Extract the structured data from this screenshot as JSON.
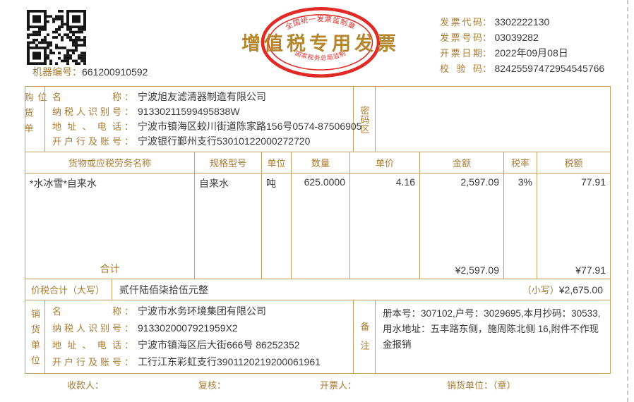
{
  "punct": {
    "colon": "："
  },
  "header": {
    "machine_label": "机器编号",
    "machine_value": "661200910592",
    "title": "增值税专用发票",
    "stamp": {
      "top": "全国统一发票监制章",
      "bottom": "国家税务总局监制"
    },
    "info": [
      {
        "label": "发票代码",
        "value": "3302222130"
      },
      {
        "label": "发票号码",
        "value": "03039282"
      },
      {
        "label": "开票日期",
        "value": "2022年09月08日"
      },
      {
        "label": "校验码",
        "value": "82425597472954545766"
      }
    ]
  },
  "buyer": {
    "side_label": "购货单位",
    "rows": [
      {
        "label": "名称",
        "value": "宁波旭友滤清器制造有限公司"
      },
      {
        "label": "纳税人识别号",
        "value": "91330211599495838W"
      },
      {
        "label": "地址、电话",
        "value": "宁波市镇海区蛟川街道陈家路156号0574-87506905"
      },
      {
        "label": "开户行及账号",
        "value": "宁波银行鄞州支行53010122000272720"
      }
    ],
    "password_area_label": "密码区"
  },
  "items_table": {
    "headers": [
      "货物或应税劳务名称",
      "规格型号",
      "单位",
      "数量",
      "单价",
      "金额",
      "税率",
      "税额"
    ],
    "rows": [
      {
        "name": "*水冰雪*自来水",
        "spec": "自来水",
        "unit": "吨",
        "qty": "625.0000",
        "price": "4.16",
        "amount": "2,597.09",
        "tax_rate": "3%",
        "tax": "77.91"
      }
    ],
    "total_label": "合计",
    "total_amount": "¥2,597.09",
    "total_tax": "¥77.91"
  },
  "grand_total": {
    "label": "价税合计（大写）",
    "words": "贰仟陆佰柒拾伍元整",
    "small_label": "（小写）",
    "small_value": "¥2,675.00"
  },
  "seller": {
    "side_label": "销货单位",
    "rows": [
      {
        "label": "名称",
        "value": "宁波市水务环境集团有限公司"
      },
      {
        "label": "纳税人识别号",
        "value": "9133020007921959X2"
      },
      {
        "label": "地址、电话",
        "value": "宁波市镇海区后大街666号 86252352"
      },
      {
        "label": "开户行及账号",
        "value": "工行江东彩虹支行3901120219200061961"
      }
    ],
    "remark_label": "备注",
    "remark_text": "册本号：307102,户号：3029695,本月抄码：30533,用水地址：五丰路东侧，施周陈北侧 16,附件不作现金报销"
  },
  "footer": {
    "payee": "收款人：",
    "reviewer": "复核：",
    "drawer": "开票人：",
    "seller_seal": "销货单位：（章）"
  },
  "colors": {
    "gold": "#aa7b31",
    "border": "#c8a05f",
    "text": "#3a3a3a",
    "stamp_red": "#e02b26"
  }
}
